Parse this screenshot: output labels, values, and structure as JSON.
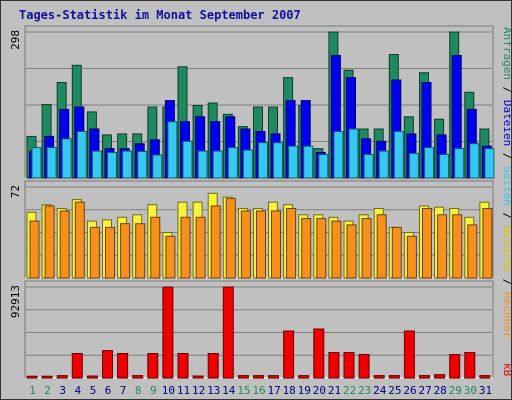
{
  "title": "Tages-Statistik im Monat September 2007",
  "colors": {
    "anfragen": "#1f8a5f",
    "dateien": "#0000ee",
    "seiten": "#35c8f0",
    "besuche": "#f7f33b",
    "rechner": "#f6901d",
    "kb": "#ee0000",
    "weekend_day": "#1f8a5f",
    "weekday": "#000080"
  },
  "side_labels": {
    "upper": [
      {
        "text": "Anfragen",
        "color": "#1f8a5f"
      },
      {
        "text": " / ",
        "color": "#000000"
      },
      {
        "text": "Dateien",
        "color": "#0000ee"
      },
      {
        "text": " / ",
        "color": "#000000"
      },
      {
        "text": "Seiten",
        "color": "#35c8f0"
      },
      {
        "text": " / ",
        "color": "#000000"
      },
      {
        "text": "Besuche",
        "color": "#e0c000"
      },
      {
        "text": " / ",
        "color": "#000000"
      },
      {
        "text": "Rechner",
        "color": "#f6901d"
      }
    ],
    "lower": "kB"
  },
  "chart_data": [
    {
      "type": "bar",
      "panel": "hits",
      "ymax_label": "298",
      "ylim": [
        0,
        298
      ],
      "categories": [
        "1",
        "2",
        "3",
        "4",
        "5",
        "6",
        "7",
        "8",
        "9",
        "10",
        "11",
        "12",
        "13",
        "14",
        "15",
        "16",
        "17",
        "18",
        "19",
        "20",
        "21",
        "22",
        "23",
        "24",
        "25",
        "26",
        "27",
        "28",
        "29",
        "30",
        "31"
      ],
      "weekend": [
        "1",
        "2",
        "8",
        "9",
        "15",
        "16",
        "22",
        "23",
        "29",
        "30"
      ],
      "series": [
        {
          "key": "anfragen",
          "values": [
            85,
            150,
            195,
            230,
            135,
            88,
            90,
            90,
            145,
            145,
            227,
            148,
            153,
            130,
            105,
            145,
            145,
            205,
            148,
            60,
            298,
            220,
            100,
            100,
            252,
            125,
            215,
            120,
            298,
            175,
            100
          ]
        },
        {
          "key": "dateien",
          "values": [
            55,
            85,
            140,
            145,
            100,
            60,
            60,
            70,
            78,
            158,
            115,
            125,
            115,
            125,
            100,
            95,
            90,
            158,
            158,
            52,
            250,
            205,
            80,
            75,
            200,
            90,
            195,
            88,
            250,
            140,
            65
          ]
        },
        {
          "key": "seiten",
          "values": [
            62,
            62,
            80,
            95,
            55,
            52,
            55,
            54,
            47,
            115,
            75,
            55,
            55,
            62,
            57,
            72,
            72,
            65,
            65,
            48,
            95,
            100,
            48,
            55,
            95,
            50,
            62,
            48,
            60,
            70,
            60
          ]
        }
      ]
    },
    {
      "type": "bar",
      "panel": "visits",
      "ymax_label": "72",
      "ylim": [
        0,
        72
      ],
      "categories": [
        "1",
        "2",
        "3",
        "4",
        "5",
        "6",
        "7",
        "8",
        "9",
        "10",
        "11",
        "12",
        "13",
        "14",
        "15",
        "16",
        "17",
        "18",
        "19",
        "20",
        "21",
        "22",
        "23",
        "24",
        "25",
        "26",
        "27",
        "28",
        "29",
        "30",
        "31"
      ],
      "series": [
        {
          "key": "besuche",
          "values": [
            52,
            58,
            55,
            62,
            45,
            46,
            48,
            50,
            58,
            36,
            60,
            60,
            67,
            64,
            55,
            55,
            60,
            58,
            50,
            50,
            48,
            45,
            50,
            55,
            40,
            36,
            57,
            56,
            55,
            48,
            60
          ]
        },
        {
          "key": "rechner",
          "values": [
            45,
            57,
            53,
            60,
            40,
            40,
            43,
            43,
            48,
            33,
            48,
            48,
            57,
            63,
            53,
            53,
            53,
            55,
            47,
            47,
            45,
            42,
            47,
            50,
            40,
            33,
            55,
            50,
            50,
            42,
            55
          ]
        }
      ]
    },
    {
      "type": "bar",
      "panel": "kb",
      "ymax_label": "92913",
      "ylim": [
        0,
        92913
      ],
      "categories": [
        "1",
        "2",
        "3",
        "4",
        "5",
        "6",
        "7",
        "8",
        "9",
        "10",
        "11",
        "12",
        "13",
        "14",
        "15",
        "16",
        "17",
        "18",
        "19",
        "20",
        "21",
        "22",
        "23",
        "24",
        "25",
        "26",
        "27",
        "28",
        "29",
        "30",
        "31"
      ],
      "series": [
        {
          "key": "kb",
          "values": [
            1800,
            1800,
            2500,
            25000,
            2000,
            28000,
            25000,
            2500,
            25000,
            92913,
            25000,
            2000,
            25000,
            92913,
            2500,
            2500,
            2500,
            48000,
            2500,
            50000,
            26000,
            26000,
            24000,
            2500,
            2500,
            48000,
            2500,
            3500,
            24000,
            26000,
            2500
          ]
        }
      ]
    }
  ]
}
